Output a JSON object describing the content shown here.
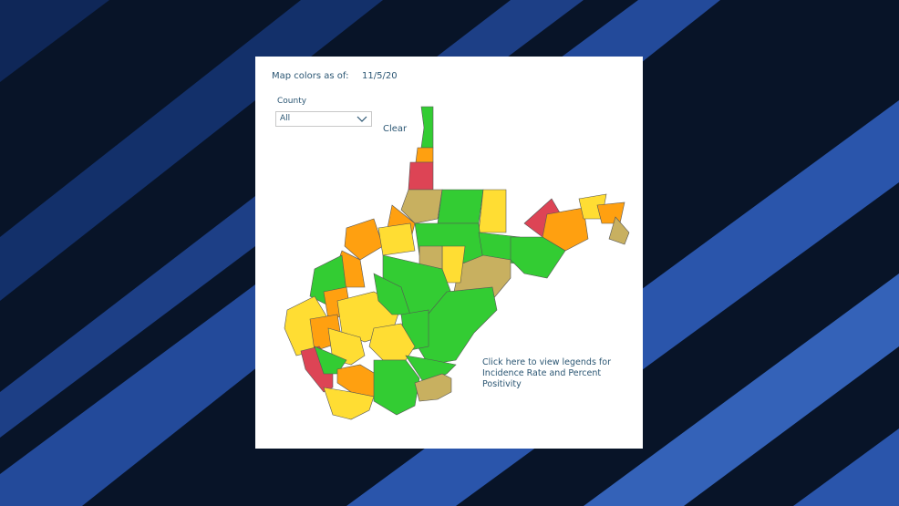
{
  "header": {
    "label": "Map colors as of:",
    "date": "11/5/20"
  },
  "filter": {
    "label": "County",
    "value": "All",
    "clear": "Clear"
  },
  "note": "Click here to view legends for Incidence Rate and Percent Positivity"
}
